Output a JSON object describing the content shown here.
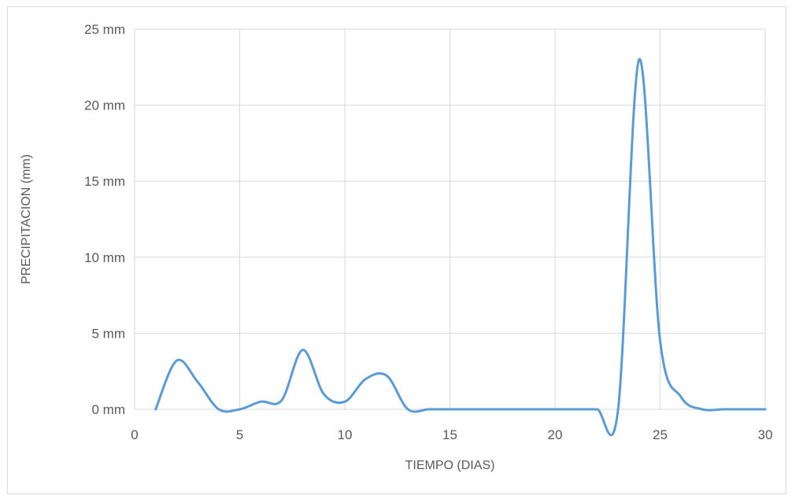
{
  "chart_data": {
    "type": "line",
    "smooth": true,
    "title": "",
    "xlabel": "TIEMPO (DIAS)",
    "ylabel": "PRECIPITACION (mm)",
    "xlim": [
      0,
      30
    ],
    "ylim": [
      0,
      25
    ],
    "x_ticks": [
      0,
      5,
      10,
      15,
      20,
      25,
      30
    ],
    "x_tick_labels": [
      "0",
      "5",
      "10",
      "15",
      "20",
      "25",
      "30"
    ],
    "y_ticks": [
      0,
      5,
      10,
      15,
      20,
      25
    ],
    "y_tick_labels": [
      "0 mm",
      "5 mm",
      "10 mm",
      "15 mm",
      "20 mm",
      "25 mm"
    ],
    "grid": true,
    "legend": "none",
    "series": [
      {
        "color": "#5b9bd5",
        "x": [
          1,
          2,
          3,
          4,
          5,
          6,
          7,
          8,
          9,
          10,
          11,
          12,
          13,
          14,
          15,
          16,
          17,
          18,
          19,
          20,
          21,
          22,
          23,
          24,
          25,
          26,
          27,
          28,
          29,
          30
        ],
        "values": [
          0,
          3.2,
          1.8,
          0,
          0,
          0.5,
          0.6,
          3.9,
          1.0,
          0.5,
          2.0,
          2.2,
          0,
          0,
          0,
          0,
          0,
          0,
          0,
          0,
          0,
          0,
          0,
          23,
          4.5,
          0.8,
          0,
          0,
          0,
          0
        ]
      }
    ]
  }
}
